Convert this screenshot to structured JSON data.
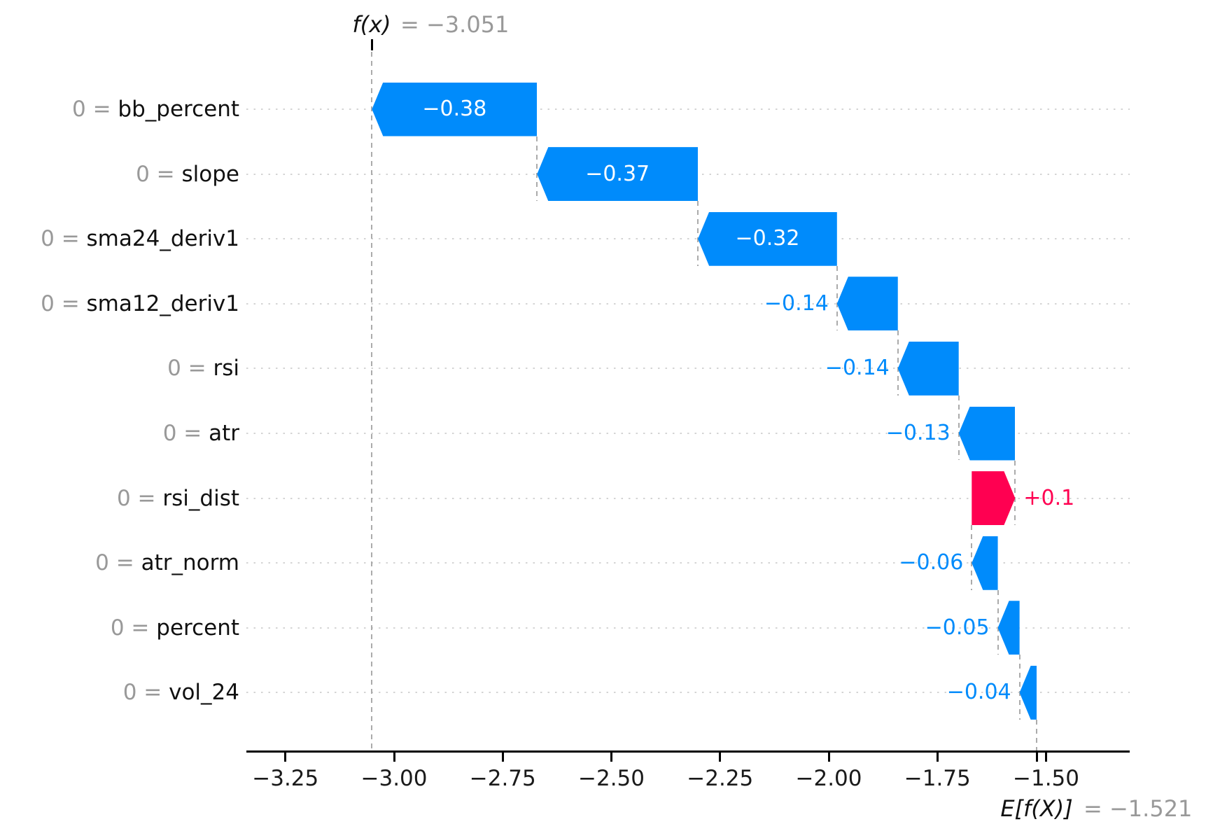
{
  "chart_data": {
    "type": "waterfall",
    "subtype": "shap-waterfall-plot",
    "title": "f(x) = −3.051",
    "fx_value": -3.051,
    "expected_value": -1.521,
    "header": {
      "fx_label": "f(x)",
      "fx_equals": "= −3.051"
    },
    "footer": {
      "ef_label": "E[f(X)]",
      "ef_equals": "= −1.521"
    },
    "features": [
      {
        "prefix": "0 = ",
        "name": "bb_percent",
        "value": -0.38,
        "value_label": "−0.38",
        "label_position": "inside"
      },
      {
        "prefix": "0 = ",
        "name": "slope",
        "value": -0.37,
        "value_label": "−0.37",
        "label_position": "inside"
      },
      {
        "prefix": "0 = ",
        "name": "sma24_deriv1",
        "value": -0.32,
        "value_label": "−0.32",
        "label_position": "inside"
      },
      {
        "prefix": "0 = ",
        "name": "sma12_deriv1",
        "value": -0.14,
        "value_label": "−0.14",
        "label_position": "outside"
      },
      {
        "prefix": "0 = ",
        "name": "rsi",
        "value": -0.14,
        "value_label": "−0.14",
        "label_position": "outside"
      },
      {
        "prefix": "0 = ",
        "name": "atr",
        "value": -0.13,
        "value_label": "−0.13",
        "label_position": "outside"
      },
      {
        "prefix": "0 = ",
        "name": "rsi_dist",
        "value": 0.1,
        "value_label": "+0.1",
        "label_position": "outside"
      },
      {
        "prefix": "0 = ",
        "name": "atr_norm",
        "value": -0.06,
        "value_label": "−0.06",
        "label_position": "outside"
      },
      {
        "prefix": "0 = ",
        "name": "percent",
        "value": -0.05,
        "value_label": "−0.05",
        "label_position": "outside"
      },
      {
        "prefix": "0 = ",
        "name": "vol_24",
        "value": -0.04,
        "value_label": "−0.04",
        "label_position": "outside"
      }
    ],
    "x_axis": {
      "ticks": [
        {
          "value": -3.25,
          "label": "−3.25"
        },
        {
          "value": -3.0,
          "label": "−3.00"
        },
        {
          "value": -2.75,
          "label": "−2.75"
        },
        {
          "value": -2.5,
          "label": "−2.50"
        },
        {
          "value": -2.25,
          "label": "−2.25"
        },
        {
          "value": -2.0,
          "label": "−2.00"
        },
        {
          "value": -1.75,
          "label": "−1.75"
        },
        {
          "value": -1.5,
          "label": "−1.50"
        }
      ],
      "range": [
        -3.32,
        -1.3
      ]
    },
    "grid": "horizontal-dotted",
    "legend": "none",
    "colors": {
      "negative": "#008bfb",
      "positive": "#ff0051",
      "inside_label": "#ffffff",
      "muted_text": "#999999",
      "main_text": "#1a1a1a",
      "gridline": "#d4d4d4",
      "connector": "#ababab",
      "axis": "#000000",
      "background": "#ffffff"
    }
  }
}
